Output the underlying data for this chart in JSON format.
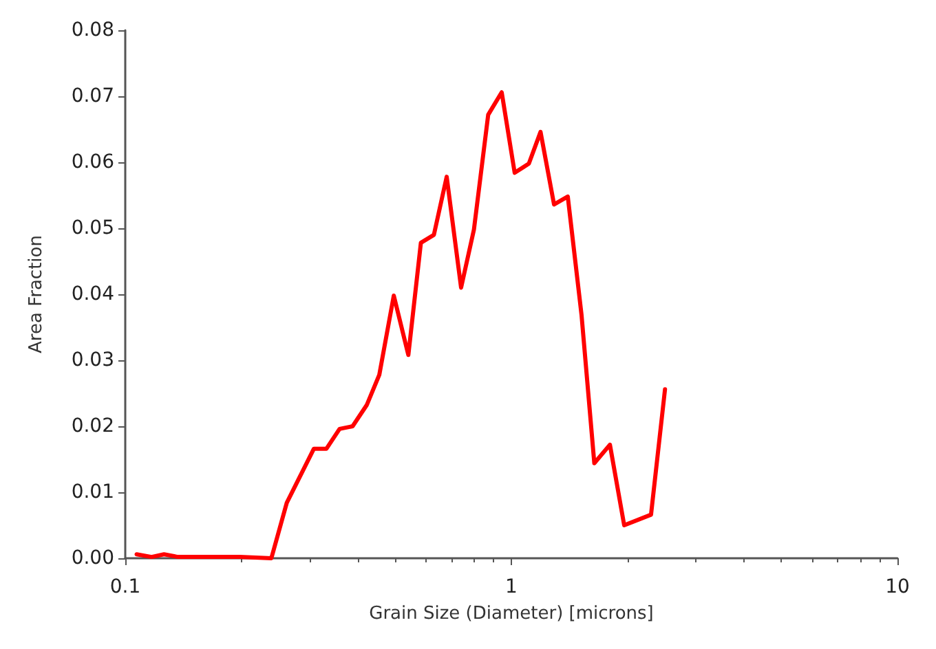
{
  "chart_data": {
    "type": "line",
    "xlabel": "Grain Size (Diameter) [microns]",
    "ylabel": "Area Fraction",
    "log": "x",
    "x": [
      0.107,
      0.117,
      0.126,
      0.137,
      0.198,
      0.239,
      0.262,
      0.308,
      0.332,
      0.359,
      0.388,
      0.422,
      0.455,
      0.496,
      0.541,
      0.583,
      0.63,
      0.68,
      0.741,
      0.8,
      0.871,
      0.944,
      1.02,
      1.11,
      1.19,
      1.29,
      1.4,
      1.52,
      1.64,
      1.8,
      1.96,
      2.3,
      2.5
    ],
    "series": [
      {
        "color": "#ff0000",
        "values": [
          0.0006,
          0.0002,
          0.0006,
          0.0002,
          0.0002,
          0,
          0.0084,
          0.0166,
          0.0166,
          0.0196,
          0.02,
          0.0232,
          0.0278,
          0.0398,
          0.0308,
          0.0478,
          0.049,
          0.0578,
          0.041,
          0.0498,
          0.0672,
          0.0706,
          0.0584,
          0.0598,
          0.0646,
          0.0536,
          0.0548,
          0.0368,
          0.0144,
          0.0172,
          0.005,
          0.0066,
          0.0256
        ]
      }
    ],
    "xlim": [
      0.1,
      10
    ],
    "xticks": [
      0.1,
      1,
      10
    ],
    "ylim": [
      0,
      0.08
    ],
    "yticks": [
      {
        "value": 0,
        "label": "0.00"
      },
      {
        "value": 0.01,
        "label": "0.01"
      },
      {
        "value": 0.02,
        "label": "0.02"
      },
      {
        "value": 0.03,
        "label": "0.03"
      },
      {
        "value": 0.04,
        "label": "0.04"
      },
      {
        "value": 0.05,
        "label": "0.05"
      },
      {
        "value": 0.06,
        "label": "0.06"
      },
      {
        "value": 0.07,
        "label": "0.07"
      },
      {
        "value": 0.08,
        "label": "0.08"
      }
    ],
    "grid": false,
    "marker": "none",
    "line_style": "solid"
  }
}
